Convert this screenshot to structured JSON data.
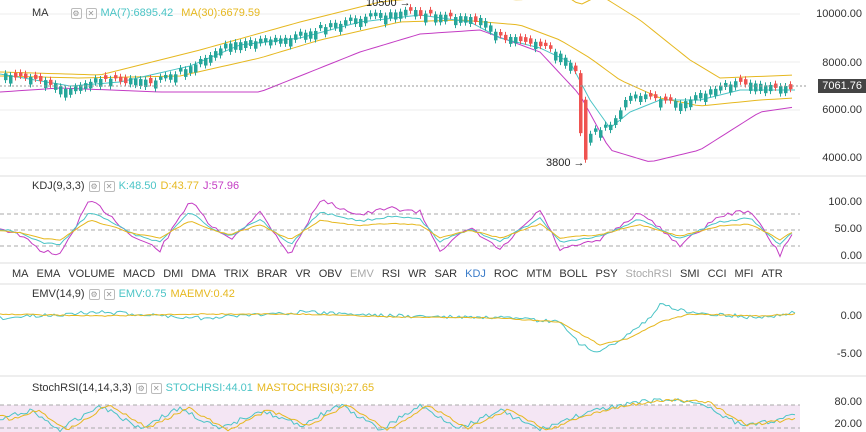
{
  "main": {
    "legend": {
      "name": "MA",
      "ma7": "MA(7):6895.42",
      "ma30": "MA(30):6679.59"
    },
    "price_label": "7061.76",
    "yaxis": [
      "10000.00",
      "8000.00",
      "6000.00",
      "4000.00"
    ],
    "annotations": {
      "high": "10500",
      "low": "3800"
    },
    "arrow": "→"
  },
  "kdj": {
    "name": "KDJ(9,3,3)",
    "k": "K:48.50",
    "d": "D:43.77",
    "j": "J:57.96",
    "yaxis": [
      "100.00",
      "50.00",
      "0.00"
    ]
  },
  "tabs": [
    "MA",
    "EMA",
    "VOLUME",
    "MACD",
    "DMI",
    "DMA",
    "TRIX",
    "BRAR",
    "VR",
    "OBV",
    "EMV",
    "RSI",
    "WR",
    "SAR",
    "KDJ",
    "ROC",
    "MTM",
    "BOLL",
    "PSY",
    "StochRSI",
    "SMI",
    "CCI",
    "MFI",
    "ATR"
  ],
  "emv": {
    "name": "EMV(14,9)",
    "emv": "EMV:0.75",
    "maemv": "MAEMV:0.42",
    "yaxis": [
      "0.00",
      "-5.00"
    ]
  },
  "stochrsi": {
    "name": "StochRSI(14,14,3,3)",
    "stoch": "STOCHRSI:44.01",
    "ma": "MASTOCHRSI(3):27.65",
    "yaxis": [
      "80.00",
      "20.00"
    ]
  },
  "colors": {
    "up": "#26a69a",
    "down": "#ef5350",
    "ma7": "#4bc4c6",
    "ma30": "#e6b820",
    "boll": "#c43dc4",
    "k": "#4bc4c6",
    "d": "#e6b820",
    "j": "#c43dc4",
    "highlight": "#3b7cc9"
  }
}
